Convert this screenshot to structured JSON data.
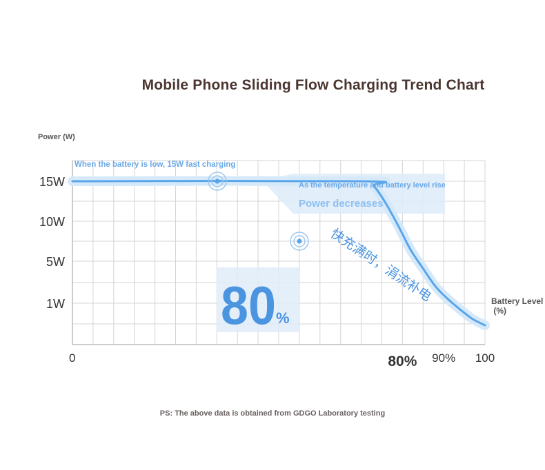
{
  "chart_data": {
    "type": "line",
    "title": "Mobile Phone Sliding Flow Charging Trend Chart",
    "ylabel": "Power (W)",
    "xlabel": "Battery Level (%)",
    "y_ticks": [
      {
        "label": "15W",
        "value": 15
      },
      {
        "label": "10W",
        "value": 10
      },
      {
        "label": "5W",
        "value": 5
      },
      {
        "label": "1W",
        "value": 1
      }
    ],
    "x_ticks": [
      {
        "label": "0",
        "value": 0
      },
      {
        "label": "80%",
        "value": 80
      },
      {
        "label": "90%",
        "value": 90
      },
      {
        "label": "100",
        "value": 100
      }
    ],
    "xlim": [
      0,
      100
    ],
    "grid": true,
    "series": [
      {
        "x": [
          0,
          70,
          73,
          76,
          79,
          82,
          85,
          88,
          91,
          94,
          97,
          100
        ],
        "y": [
          15,
          15,
          14.4,
          12.2,
          9.4,
          6.4,
          4.3,
          2.6,
          1.4,
          0.4,
          -0.5,
          -1.1
        ]
      }
    ],
    "annotations": {
      "low_battery": "When the battery is low, 15W fast charging",
      "temperature": "As the temperature and battery level rise",
      "power_decreases": "Power decreases",
      "big_number": "80",
      "big_percent": "%",
      "chinese": "快充满时，涓流补电"
    },
    "footnote": "PS: The above data is obtained from GDGO Laboratory testing",
    "colors": {
      "curve": "#5aa5ea",
      "glow": "#d6e9f9",
      "label": "#6aa9e8",
      "big_number": "#4a94e0",
      "highlight": "#dfecf9",
      "grid": "#d4d4d4",
      "title": "#4a3530"
    }
  }
}
